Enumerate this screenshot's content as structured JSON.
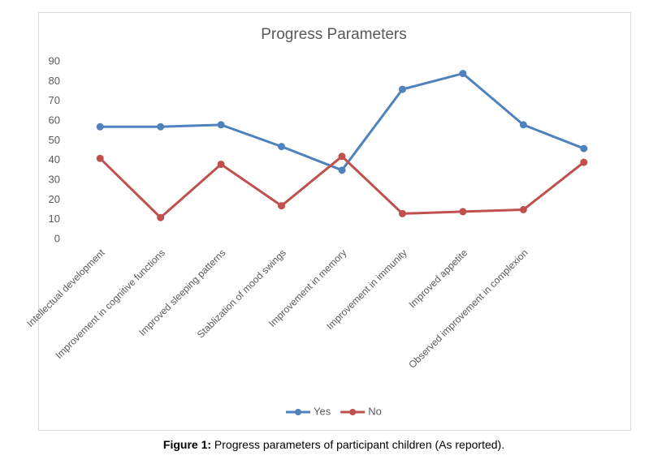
{
  "chart_data": {
    "type": "line",
    "title": "Progress Parameters",
    "categories": [
      "Intellectual development",
      "Improvement in cognitive functions",
      "Improved sleeping patterns",
      "Stablization of mood swings",
      "Improvement in memory",
      "Improvement in immunity",
      "Improved appetite",
      "Observed improvement in complexion",
      ""
    ],
    "series": [
      {
        "name": "Yes",
        "color": "#4f81bd",
        "values": [
          57,
          57,
          58,
          47,
          35,
          76,
          84,
          58,
          46
        ]
      },
      {
        "name": "No",
        "color": "#c0504d",
        "values": [
          41,
          11,
          38,
          17,
          42,
          13,
          14,
          15,
          39
        ]
      }
    ],
    "ylim": [
      0,
      90
    ],
    "yticks": [
      0,
      10,
      20,
      30,
      40,
      50,
      60,
      70,
      80,
      90
    ],
    "grid": false,
    "legend": "bottom"
  },
  "caption": {
    "label": "Figure 1:",
    "text": "Progress parameters of participant children (As reported)."
  }
}
